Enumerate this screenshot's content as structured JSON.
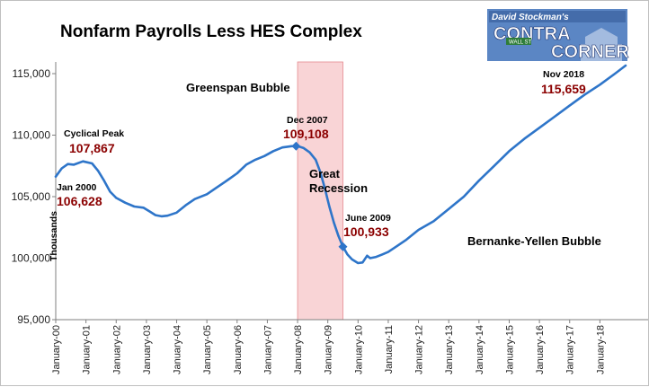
{
  "chart_data": {
    "type": "line",
    "title": "Nonfarm Payrolls Less HES Complex",
    "ylabel": "Thousands",
    "xlabel": "",
    "ylim": [
      95000,
      116000
    ],
    "yticks": [
      "95,000",
      "100,000",
      "105,000",
      "110,000",
      "115,000"
    ],
    "ytick_values": [
      95000,
      100000,
      105000,
      110000,
      115000
    ],
    "xticks": [
      "January-00",
      "January-01",
      "January-02",
      "January-03",
      "January-04",
      "January-05",
      "January-06",
      "January-07",
      "January-08",
      "January-09",
      "January-10",
      "January-11",
      "January-12",
      "January-13",
      "January-14",
      "January-15",
      "January-16",
      "January-17",
      "January-18"
    ],
    "xtick_years": [
      2000,
      2001,
      2002,
      2003,
      2004,
      2005,
      2006,
      2007,
      2008,
      2009,
      2010,
      2011,
      2012,
      2013,
      2014,
      2015,
      2016,
      2017,
      2018
    ],
    "xlim": [
      2000.0,
      2019.0
    ],
    "series": [
      {
        "color": "#2e75c9",
        "points": [
          [
            2000.0,
            106628
          ],
          [
            2000.2,
            107300
          ],
          [
            2000.4,
            107650
          ],
          [
            2000.6,
            107600
          ],
          [
            2000.9,
            107867
          ],
          [
            2001.2,
            107700
          ],
          [
            2001.4,
            107100
          ],
          [
            2001.6,
            106300
          ],
          [
            2001.8,
            105400
          ],
          [
            2002.0,
            104900
          ],
          [
            2002.3,
            104500
          ],
          [
            2002.6,
            104200
          ],
          [
            2002.9,
            104100
          ],
          [
            2003.1,
            103800
          ],
          [
            2003.3,
            103500
          ],
          [
            2003.5,
            103400
          ],
          [
            2003.7,
            103450
          ],
          [
            2004.0,
            103700
          ],
          [
            2004.3,
            104300
          ],
          [
            2004.6,
            104800
          ],
          [
            2005.0,
            105200
          ],
          [
            2005.3,
            105700
          ],
          [
            2005.6,
            106200
          ],
          [
            2006.0,
            106900
          ],
          [
            2006.3,
            107600
          ],
          [
            2006.6,
            108000
          ],
          [
            2006.9,
            108300
          ],
          [
            2007.2,
            108700
          ],
          [
            2007.5,
            109000
          ],
          [
            2007.8,
            109100
          ],
          [
            2008.0,
            109108
          ],
          [
            2008.2,
            108950
          ],
          [
            2008.4,
            108600
          ],
          [
            2008.6,
            108000
          ],
          [
            2008.75,
            107000
          ],
          [
            2008.9,
            105700
          ],
          [
            2009.05,
            104200
          ],
          [
            2009.2,
            102900
          ],
          [
            2009.35,
            101800
          ],
          [
            2009.5,
            100933
          ],
          [
            2009.65,
            100300
          ],
          [
            2009.8,
            99900
          ],
          [
            2010.0,
            99600
          ],
          [
            2010.15,
            99650
          ],
          [
            2010.3,
            100200
          ],
          [
            2010.4,
            100000
          ],
          [
            2010.6,
            100100
          ],
          [
            2010.8,
            100300
          ],
          [
            2011.0,
            100500
          ],
          [
            2011.3,
            101000
          ],
          [
            2011.6,
            101500
          ],
          [
            2012.0,
            102300
          ],
          [
            2012.5,
            103000
          ],
          [
            2013.0,
            104000
          ],
          [
            2013.5,
            105000
          ],
          [
            2014.0,
            106300
          ],
          [
            2014.5,
            107500
          ],
          [
            2015.0,
            108700
          ],
          [
            2015.5,
            109700
          ],
          [
            2016.0,
            110600
          ],
          [
            2016.5,
            111500
          ],
          [
            2017.0,
            112400
          ],
          [
            2017.5,
            113300
          ],
          [
            2018.0,
            114100
          ],
          [
            2018.5,
            115000
          ],
          [
            2018.85,
            115659
          ]
        ]
      }
    ],
    "shaded_region": [
      2008.0,
      2009.5
    ],
    "markers": [
      {
        "x": 2007.95,
        "y": 109108
      },
      {
        "x": 2009.5,
        "y": 100933
      }
    ],
    "annotations": [
      {
        "label": "Cyclical Peak",
        "value": "107,867"
      },
      {
        "label": "Jan 2000",
        "value": "106,628"
      },
      {
        "label": "Dec 2007",
        "value": "109,108"
      },
      {
        "label": "June 2009",
        "value": "100,933"
      },
      {
        "label": "Nov 2018",
        "value": "115,659"
      }
    ],
    "region_labels": [
      "Greenspan Bubble",
      "Great",
      "Recession",
      "Bernanke-Yellen Bubble"
    ],
    "grid": false,
    "legend": "none"
  },
  "logo": {
    "line1": "David Stockman's",
    "line2": "CONTRA",
    "line3": "CORNER",
    "sign": "WALL ST"
  },
  "colors": {
    "line": "#2e75c9",
    "recession_fill": "#f9d4d6",
    "recession_edge": "#e58a90",
    "value_text": "#8b0000",
    "axis": "#7f7f7f"
  }
}
